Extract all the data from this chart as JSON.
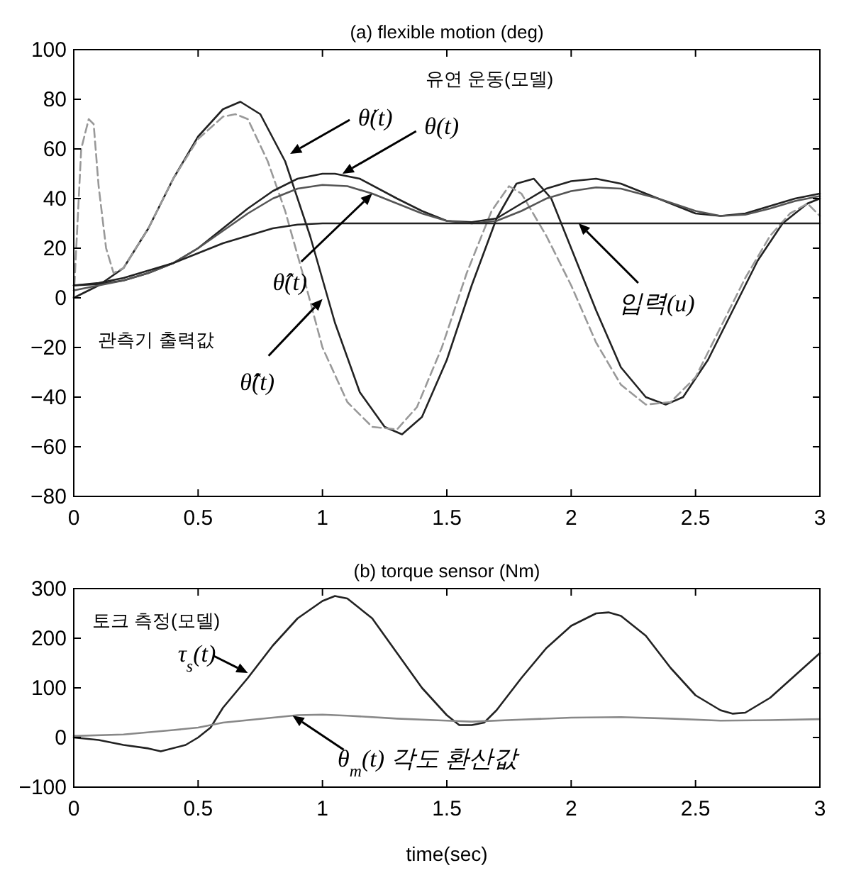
{
  "chart_data": [
    {
      "type": "line",
      "title": "(a) flexible motion (deg)",
      "xlim": [
        0,
        3
      ],
      "ylim": [
        -80,
        100
      ],
      "xticks": [
        0,
        0.5,
        1,
        1.5,
        2,
        2.5,
        3
      ],
      "yticks": [
        -80,
        -60,
        -40,
        -20,
        0,
        20,
        40,
        60,
        80,
        100
      ],
      "series": [
        {
          "color": "#222222",
          "line_style": "solid",
          "x": [
            0,
            0.1,
            0.2,
            0.3,
            0.4,
            0.5,
            0.6,
            0.67,
            0.75,
            0.85,
            0.95,
            1.05,
            1.15,
            1.25,
            1.32,
            1.4,
            1.5,
            1.6,
            1.7,
            1.78,
            1.85,
            1.92,
            2.0,
            2.1,
            2.2,
            2.3,
            2.38,
            2.45,
            2.55,
            2.65,
            2.75,
            2.85,
            2.95,
            3.0
          ],
          "values": [
            0,
            5,
            12,
            28,
            48,
            65,
            76,
            79,
            74,
            55,
            25,
            -10,
            -38,
            -52,
            -55,
            -48,
            -25,
            5,
            32,
            46,
            48,
            40,
            20,
            -5,
            -28,
            -40,
            -43,
            -40,
            -25,
            -5,
            15,
            30,
            38,
            40
          ]
        },
        {
          "color": "#999999",
          "line_style": "dashed",
          "x": [
            0,
            0.03,
            0.06,
            0.08,
            0.1,
            0.13,
            0.16,
            0.2,
            0.3,
            0.4,
            0.5,
            0.6,
            0.65,
            0.7,
            0.78,
            0.85,
            0.92,
            1.0,
            1.1,
            1.2,
            1.3,
            1.38,
            1.48,
            1.58,
            1.68,
            1.75,
            1.8,
            1.9,
            2.0,
            2.1,
            2.2,
            2.3,
            2.4,
            2.5,
            2.6,
            2.7,
            2.8,
            2.88,
            2.95,
            3.0
          ],
          "values": [
            0,
            60,
            72,
            70,
            45,
            20,
            10,
            12,
            28,
            48,
            64,
            73,
            74,
            72,
            55,
            35,
            10,
            -20,
            -42,
            -52,
            -53,
            -44,
            -20,
            10,
            35,
            45,
            42,
            25,
            5,
            -18,
            -35,
            -43,
            -42,
            -32,
            -12,
            8,
            25,
            34,
            38,
            33
          ]
        },
        {
          "color": "#222222",
          "line_style": "solid",
          "x": [
            0,
            0.1,
            0.2,
            0.3,
            0.4,
            0.5,
            0.6,
            0.7,
            0.8,
            0.9,
            1.0,
            1.05,
            1.15,
            1.3,
            1.4,
            1.5,
            1.6,
            1.7,
            1.8,
            1.9,
            2.0,
            2.1,
            2.2,
            2.35,
            2.5,
            2.6,
            2.7,
            2.8,
            2.9,
            3.0
          ],
          "values": [
            5,
            5.5,
            7,
            10,
            14,
            20,
            28,
            36,
            43,
            48,
            50,
            50,
            48,
            40,
            35,
            31,
            30.5,
            32,
            38,
            44,
            47,
            48,
            46,
            40,
            34,
            33,
            34,
            37,
            40,
            42
          ]
        },
        {
          "color": "#555555",
          "line_style": "solid",
          "x": [
            0,
            0.1,
            0.2,
            0.3,
            0.4,
            0.5,
            0.6,
            0.7,
            0.8,
            0.9,
            1.0,
            1.1,
            1.2,
            1.3,
            1.4,
            1.5,
            1.6,
            1.7,
            1.8,
            1.9,
            2.0,
            2.1,
            2.2,
            2.35,
            2.5,
            2.6,
            2.7,
            2.8,
            2.9,
            3.0
          ],
          "values": [
            3,
            5,
            7,
            10,
            14,
            20,
            27,
            34,
            40,
            44,
            45.5,
            45,
            42,
            38,
            34,
            31,
            30,
            31,
            35,
            40,
            43,
            44.5,
            44,
            40,
            35,
            33,
            33.5,
            36,
            39,
            41
          ]
        },
        {
          "color": "#222222",
          "line_style": "solid",
          "x": [
            0,
            0.1,
            0.2,
            0.3,
            0.4,
            0.5,
            0.6,
            0.7,
            0.8,
            0.9,
            1.0,
            3.0
          ],
          "values": [
            5,
            6,
            8,
            11,
            14,
            18,
            22,
            25,
            28,
            29.5,
            30,
            30
          ]
        }
      ],
      "annotations": [
        {
          "text": "θ̇(t)",
          "x": 0.87,
          "y": 58
        },
        "유연 운동(모델)",
        {
          "text": "θ(t)",
          "x": 1.08,
          "y": 50
        },
        {
          "text": "θ̂(t)",
          "x": 1.2,
          "y": 42
        },
        "관측기 출력값",
        {
          "text": "θ̂̇(t)",
          "x": 1.0,
          "y": -0.5
        },
        {
          "text": "입력(u)",
          "x": 2.03,
          "y": 30
        }
      ]
    },
    {
      "type": "line",
      "title": "(b) torque sensor (Nm)",
      "xlabel": "time(sec)",
      "xlim": [
        0,
        3
      ],
      "ylim": [
        -100,
        300
      ],
      "xticks": [
        0,
        0.5,
        1,
        1.5,
        2,
        2.5,
        3
      ],
      "yticks": [
        -100,
        0,
        100,
        200,
        300
      ],
      "series": [
        {
          "color": "#222222",
          "line_style": "solid",
          "x": [
            0,
            0.1,
            0.2,
            0.3,
            0.35,
            0.45,
            0.5,
            0.55,
            0.6,
            0.7,
            0.8,
            0.9,
            1.0,
            1.05,
            1.1,
            1.2,
            1.3,
            1.4,
            1.5,
            1.55,
            1.6,
            1.65,
            1.7,
            1.8,
            1.9,
            2.0,
            2.1,
            2.15,
            2.2,
            2.3,
            2.4,
            2.5,
            2.6,
            2.65,
            2.7,
            2.8,
            2.9,
            3.0
          ],
          "values": [
            0,
            -5,
            -15,
            -22,
            -28,
            -15,
            0,
            20,
            60,
            120,
            185,
            240,
            275,
            285,
            280,
            240,
            170,
            100,
            45,
            25,
            25,
            30,
            55,
            120,
            180,
            225,
            250,
            252,
            245,
            205,
            140,
            85,
            55,
            48,
            50,
            80,
            125,
            170
          ]
        },
        {
          "color": "#888888",
          "line_style": "solid",
          "x": [
            0,
            0.2,
            0.4,
            0.5,
            0.6,
            0.8,
            0.9,
            1.0,
            1.1,
            1.3,
            1.5,
            1.6,
            1.8,
            2.0,
            2.2,
            2.4,
            2.6,
            2.8,
            3.0
          ],
          "values": [
            3,
            6,
            15,
            20,
            30,
            40,
            45,
            46,
            44,
            38,
            34,
            32,
            36,
            40,
            41,
            38,
            34,
            35,
            37
          ]
        }
      ],
      "annotations": [
        "토크 측정(모델)",
        {
          "text": "τ$_{s}$(t)",
          "x": 0.7,
          "y": 130
        },
        {
          "text": "θ$_{m}$(t) 각도 환산값",
          "x": 0.88,
          "y": 44
        }
      ]
    }
  ]
}
